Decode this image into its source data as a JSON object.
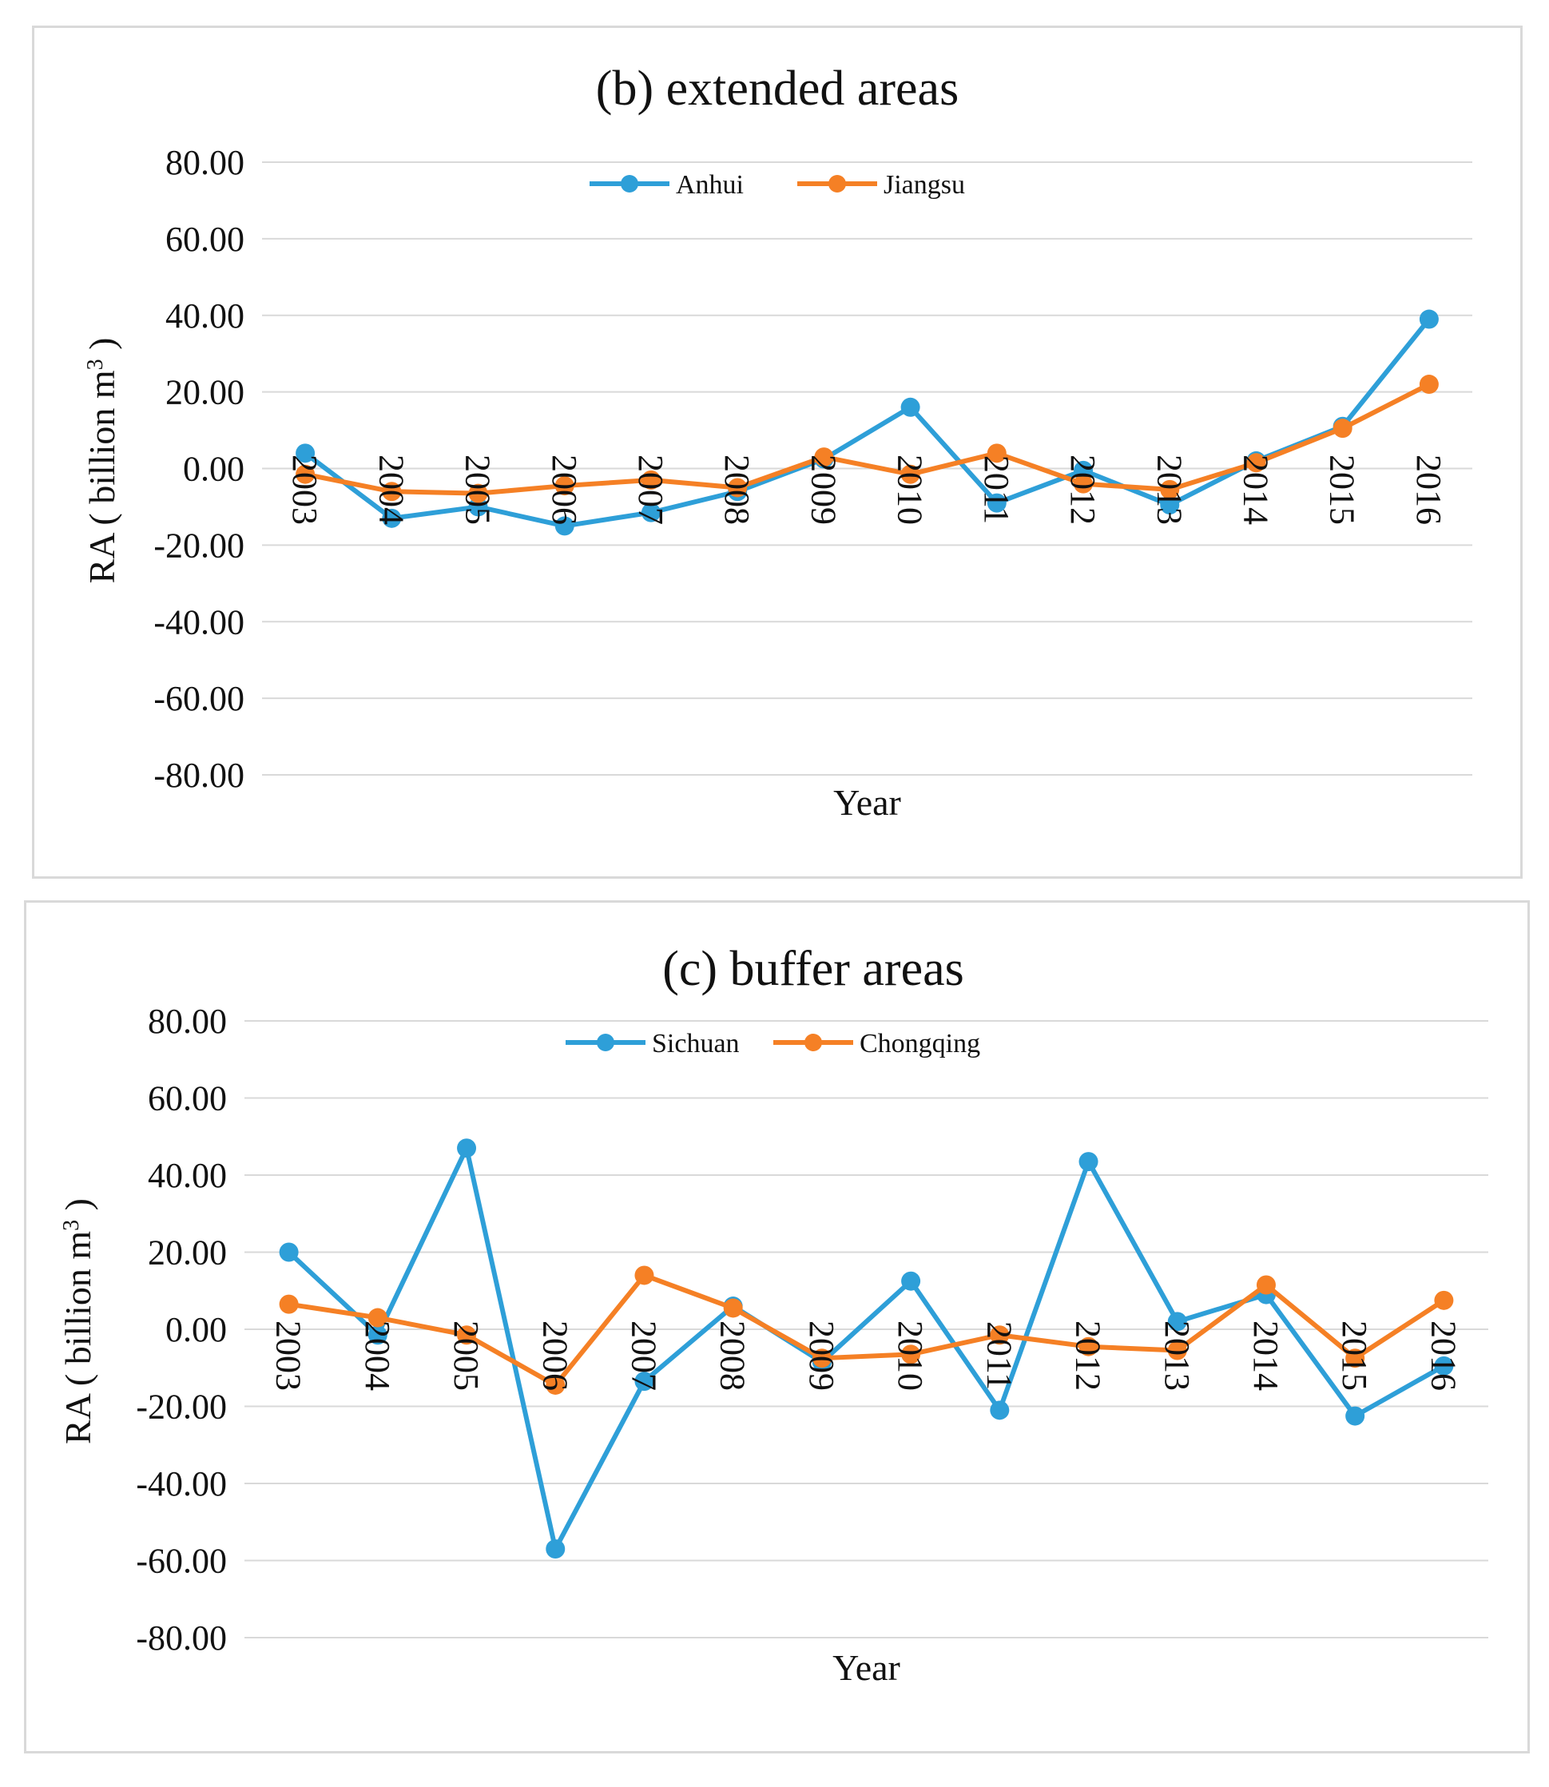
{
  "chart_data": [
    {
      "type": "line",
      "title": "(b) extended areas",
      "xlabel": "Year",
      "ylabel": "RA ( billion m",
      "ylabel_sup": "3",
      "ylabel_end": " )",
      "ylim": [
        -80,
        80
      ],
      "yticks": [
        80,
        60,
        40,
        20,
        0,
        -20,
        -40,
        -60,
        -80
      ],
      "ytick_labels": [
        "80.00",
        "60.00",
        "40.00",
        "20.00",
        "0.00",
        "-20.00",
        "-40.00",
        "-60.00",
        "-80.00"
      ],
      "categories": [
        "2003",
        "2004",
        "2005",
        "2006",
        "2007",
        "2008",
        "2009",
        "2010",
        "2011",
        "2012",
        "2013",
        "2014",
        "2015",
        "2016"
      ],
      "series": [
        {
          "name": "Anhui",
          "color": "#2e9fd8",
          "values": [
            4,
            -13,
            -10,
            -15,
            -11.5,
            -6,
            2.5,
            16,
            -9,
            -0.5,
            -9.5,
            2,
            11,
            39
          ]
        },
        {
          "name": "Jiangsu",
          "color": "#f58025",
          "values": [
            -1.5,
            -6,
            -6.5,
            -4.5,
            -3,
            -5,
            3,
            -1.5,
            4,
            -4,
            -5.5,
            1.5,
            10.5,
            22
          ]
        }
      ]
    },
    {
      "type": "line",
      "title": "(c) buffer areas",
      "xlabel": "Year",
      "ylabel": "RA ( billion m",
      "ylabel_sup": "3",
      "ylabel_end": " )",
      "ylim": [
        -80,
        80
      ],
      "yticks": [
        80,
        60,
        40,
        20,
        0,
        -20,
        -40,
        -60,
        -80
      ],
      "ytick_labels": [
        "80.00",
        "60.00",
        "40.00",
        "20.00",
        "0.00",
        "-20.00",
        "-40.00",
        "-60.00",
        "-80.00"
      ],
      "categories": [
        "2003",
        "2004",
        "2005",
        "2006",
        "2007",
        "2008",
        "2009",
        "2010",
        "2011",
        "2012",
        "2013",
        "2014",
        "2015",
        "2016"
      ],
      "series": [
        {
          "name": "Sichuan",
          "color": "#2e9fd8",
          "values": [
            20,
            -1.5,
            47,
            -57,
            -13.5,
            6,
            -8.5,
            12.5,
            -21,
            43.5,
            2,
            9,
            -22.5,
            -9.5
          ]
        },
        {
          "name": "Chongqing",
          "color": "#f58025",
          "values": [
            6.5,
            3,
            -1.5,
            -14.5,
            14,
            5.5,
            -7.5,
            -6.5,
            -1.5,
            -4.5,
            -5.5,
            11.5,
            -7.5,
            7.5
          ]
        }
      ]
    }
  ]
}
